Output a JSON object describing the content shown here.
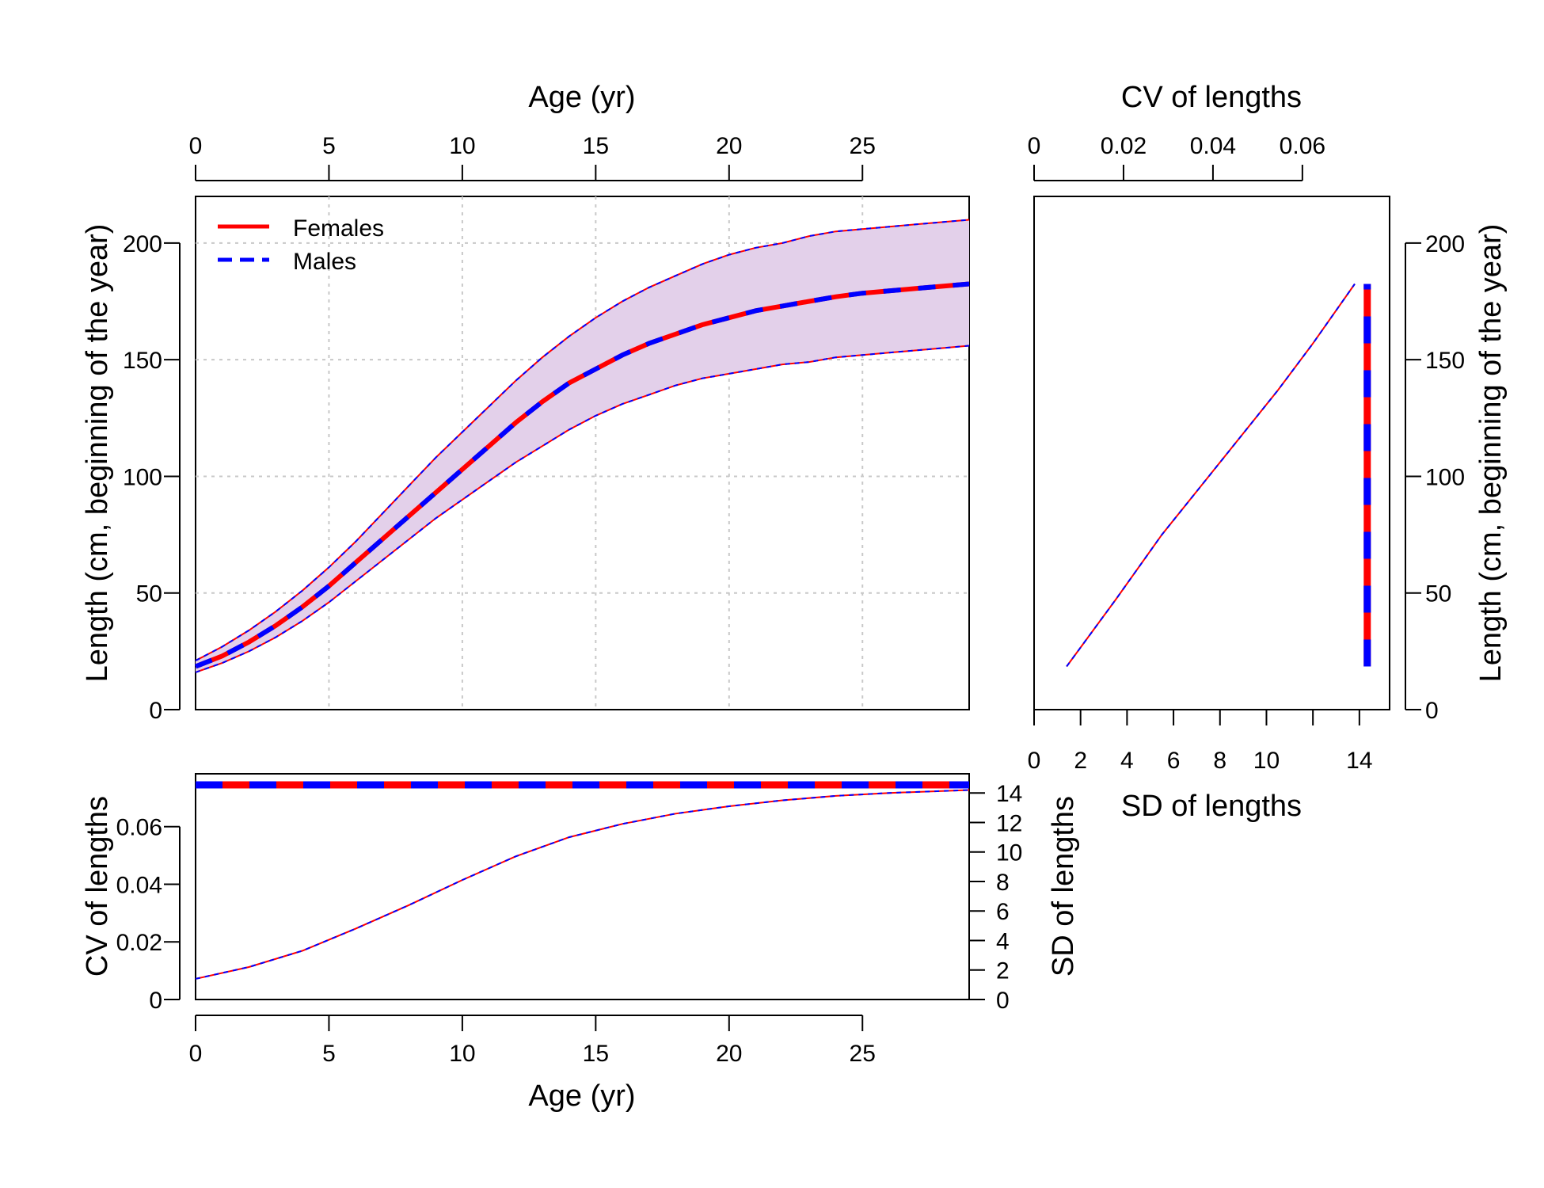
{
  "colors": {
    "females": "#ff0000",
    "males": "#0000ff",
    "band_fill": "#e3d0ea",
    "grid": "#c8c8c8"
  },
  "legend": {
    "position": "top-left",
    "entries": [
      "Females",
      "Males"
    ]
  },
  "chart_data": [
    {
      "id": "growth",
      "type": "line",
      "xlabel": "Age (yr)",
      "ylabel": "Length (cm, beginning of the year)",
      "xlim": [
        0,
        29
      ],
      "ylim": [
        0,
        220
      ],
      "x_ticks": [
        "0",
        "5",
        "10",
        "15",
        "20",
        "25"
      ],
      "y_ticks": [
        "0",
        "50",
        "100",
        "150",
        "200"
      ],
      "grid": true,
      "x": [
        0,
        1,
        2,
        3,
        4,
        5,
        6,
        7,
        8,
        9,
        10,
        11,
        12,
        13,
        14,
        15,
        16,
        17,
        18,
        19,
        20,
        21,
        22,
        23,
        24,
        25,
        26,
        27,
        28,
        29
      ],
      "series": [
        {
          "name": "Females",
          "style": "solid",
          "values": [
            18.5,
            23,
            29,
            36,
            44,
            53,
            63,
            73,
            83,
            93,
            103,
            113,
            123,
            132,
            140,
            146,
            152,
            157,
            161,
            165,
            168,
            171,
            173,
            175,
            177,
            178.5,
            179.5,
            180.5,
            181.5,
            182.5
          ],
          "upper": [
            21,
            27,
            34,
            42,
            51,
            61,
            72,
            84,
            96,
            108,
            119,
            130,
            141,
            151,
            160,
            168,
            175,
            181,
            186,
            191,
            195,
            198,
            200,
            203,
            205,
            206,
            207,
            208,
            209,
            210
          ],
          "lower": [
            16,
            20,
            25,
            31,
            38,
            46,
            55,
            64,
            73,
            82,
            90,
            98,
            106,
            113,
            120,
            126,
            131,
            135,
            139,
            142,
            144,
            146,
            148,
            149,
            151,
            152,
            153,
            154,
            155,
            156
          ]
        },
        {
          "name": "Males",
          "style": "dashed",
          "values": [
            18.5,
            23,
            29,
            36,
            44,
            53,
            63,
            73,
            83,
            93,
            103,
            113,
            123,
            132,
            140,
            146,
            152,
            157,
            161,
            165,
            168,
            171,
            173,
            175,
            177,
            178.5,
            179.5,
            180.5,
            181.5,
            182.5
          ],
          "upper": [
            21,
            27,
            34,
            42,
            51,
            61,
            72,
            84,
            96,
            108,
            119,
            130,
            141,
            151,
            160,
            168,
            175,
            181,
            186,
            191,
            195,
            198,
            200,
            203,
            205,
            206,
            207,
            208,
            209,
            210
          ],
          "lower": [
            16,
            20,
            25,
            31,
            38,
            46,
            55,
            64,
            73,
            82,
            90,
            98,
            106,
            113,
            120,
            126,
            131,
            135,
            139,
            142,
            144,
            146,
            148,
            149,
            151,
            152,
            153,
            154,
            155,
            156
          ]
        }
      ]
    },
    {
      "id": "sd_cv_length",
      "type": "line",
      "xlabel": "SD of lengths",
      "x2label": "CV of lengths",
      "ylabel": "Length (cm, beginning of the year)",
      "xlim": [
        0,
        15.3
      ],
      "x2lim": [
        0,
        0.0795
      ],
      "ylim": [
        0,
        220
      ],
      "x_ticks": [
        "0",
        "2",
        "4",
        "6",
        "8",
        "10",
        "14"
      ],
      "x2_ticks": [
        "0",
        "0.02",
        "0.04",
        "0.06"
      ],
      "y_ticks": [
        "0",
        "50",
        "100",
        "150",
        "200"
      ],
      "sd_series": {
        "x": [
          1.4,
          3.5,
          5.5,
          8,
          10.5,
          12,
          13.8
        ],
        "y": [
          18.5,
          47,
          75,
          106,
          137,
          157,
          182.5
        ]
      },
      "cv_series": {
        "x": [
          0.0745,
          0.0745
        ],
        "y": [
          18.5,
          182.5
        ]
      }
    },
    {
      "id": "cv_sd_age",
      "type": "line",
      "xlabel": "Age (yr)",
      "ylabel": "CV of lengths",
      "y2label": "SD of lengths",
      "xlim": [
        0,
        29
      ],
      "ylim": [
        0,
        0.0745
      ],
      "y2lim": [
        0,
        15.3
      ],
      "x_ticks": [
        "0",
        "5",
        "10",
        "15",
        "20",
        "25"
      ],
      "y_ticks": [
        "0",
        "0.02",
        "0.04",
        "0.06"
      ],
      "y2_ticks": [
        "0",
        "2",
        "4",
        "6",
        "8",
        "10",
        "12",
        "14"
      ],
      "x": [
        0,
        2,
        4,
        6,
        8,
        10,
        12,
        14,
        16,
        18,
        20,
        22,
        24,
        26,
        29
      ],
      "cv_values": [
        0.0745,
        0.0745,
        0.0745,
        0.0745,
        0.0745,
        0.0745,
        0.0745,
        0.0745,
        0.0745,
        0.0745,
        0.0745,
        0.0745,
        0.0745,
        0.0745,
        0.0745
      ],
      "sd_values": [
        1.4,
        2.2,
        3.3,
        4.8,
        6.4,
        8.1,
        9.7,
        11.0,
        11.9,
        12.6,
        13.1,
        13.5,
        13.8,
        14.0,
        14.2
      ]
    }
  ]
}
